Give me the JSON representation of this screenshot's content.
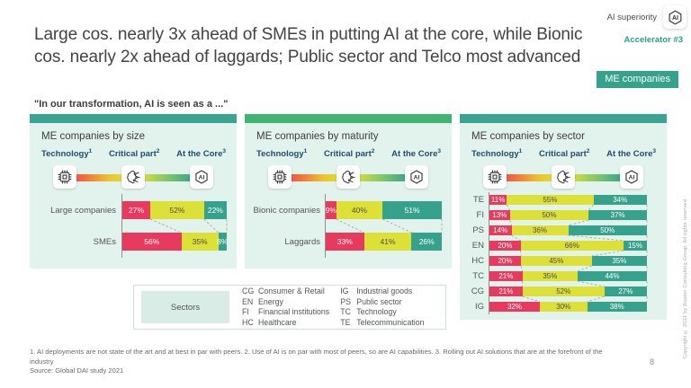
{
  "header": {
    "title": "Large cos. nearly 3x ahead of SMEs in putting AI at the core, while Bionic cos. nearly 2x ahead of laggards; Public sector and Telco most advanced",
    "program_label": "AI superiority",
    "accelerator_label": "Accelerator #3",
    "badge": "ME companies"
  },
  "quote": "\"In our transformation, AI is seen as a ...\"",
  "scale": {
    "levels": [
      {
        "label": "Technology",
        "sup": "1"
      },
      {
        "label": "Critical part",
        "sup": "2"
      },
      {
        "label": "At the Core",
        "sup": "3"
      }
    ]
  },
  "chart_data": [
    {
      "type": "bar",
      "stacked": true,
      "orientation": "horizontal",
      "unit": "%",
      "title": "ME companies by size",
      "strip_color": "#3aa492",
      "categories": [
        "Large companies",
        "SMEs"
      ],
      "series": [
        {
          "name": "Technology",
          "values": [
            27,
            56
          ]
        },
        {
          "name": "Critical part",
          "values": [
            52,
            35
          ]
        },
        {
          "name": "At the Core",
          "values": [
            22,
            8
          ]
        }
      ]
    },
    {
      "type": "bar",
      "stacked": true,
      "orientation": "horizontal",
      "unit": "%",
      "title": "ME companies by maturity",
      "strip_color": "#3eb573",
      "categories": [
        "Bionic companies",
        "Laggards"
      ],
      "series": [
        {
          "name": "Technology",
          "values": [
            9,
            33
          ]
        },
        {
          "name": "Critical part",
          "values": [
            40,
            41
          ]
        },
        {
          "name": "At the Core",
          "values": [
            51,
            26
          ]
        }
      ]
    },
    {
      "type": "bar",
      "stacked": true,
      "orientation": "horizontal",
      "unit": "%",
      "title": "ME companies by sector",
      "strip_color": "#3aa492",
      "categories": [
        "TE",
        "FI",
        "PS",
        "EN",
        "HC",
        "TC",
        "CG",
        "IG"
      ],
      "series": [
        {
          "name": "Technology",
          "values": [
            11,
            13,
            14,
            20,
            20,
            21,
            21,
            32
          ]
        },
        {
          "name": "Critical part",
          "values": [
            55,
            50,
            36,
            66,
            45,
            35,
            52,
            30
          ]
        },
        {
          "name": "At the Core",
          "values": [
            34,
            37,
            50,
            15,
            35,
            44,
            27,
            38
          ]
        }
      ]
    }
  ],
  "legend": {
    "title": "Sectors",
    "entries": [
      {
        "abbr": "CG",
        "name": "Consumer & Retail"
      },
      {
        "abbr": "EN",
        "name": "Energy"
      },
      {
        "abbr": "FI",
        "name": "Financial institutions"
      },
      {
        "abbr": "HC",
        "name": "Healthcare"
      },
      {
        "abbr": "IG",
        "name": "Industrial goods"
      },
      {
        "abbr": "PS",
        "name": "Public sector"
      },
      {
        "abbr": "TC",
        "name": "Technology"
      },
      {
        "abbr": "TE",
        "name": "Telecommunication"
      }
    ]
  },
  "footnotes": {
    "notes": "1. AI deployments are not state of the art and at best in par with peers. 2. Use of AI is on par with most of peers, so are AI capabilities. 3. Rolling out AI solutions that are at the forefront of the industry",
    "source": "Source: Global DAI study 2021"
  },
  "page_number": "8",
  "copyright": "Copyright © 2021 by Boston Consulting Group. All rights reserved",
  "colors": {
    "segment_colors": [
      "#e8395f",
      "#dde137",
      "#36a28c"
    ],
    "segment_text_colors": [
      "#ffffff",
      "#4d4d4d",
      "#ffffff"
    ],
    "panel_bg": "#e2f2ec",
    "badge_bg": "#35a28b",
    "header_navy": "#1d4e6d",
    "accent_teal": "#27a089",
    "connector_gray": "#a0a0a0"
  }
}
